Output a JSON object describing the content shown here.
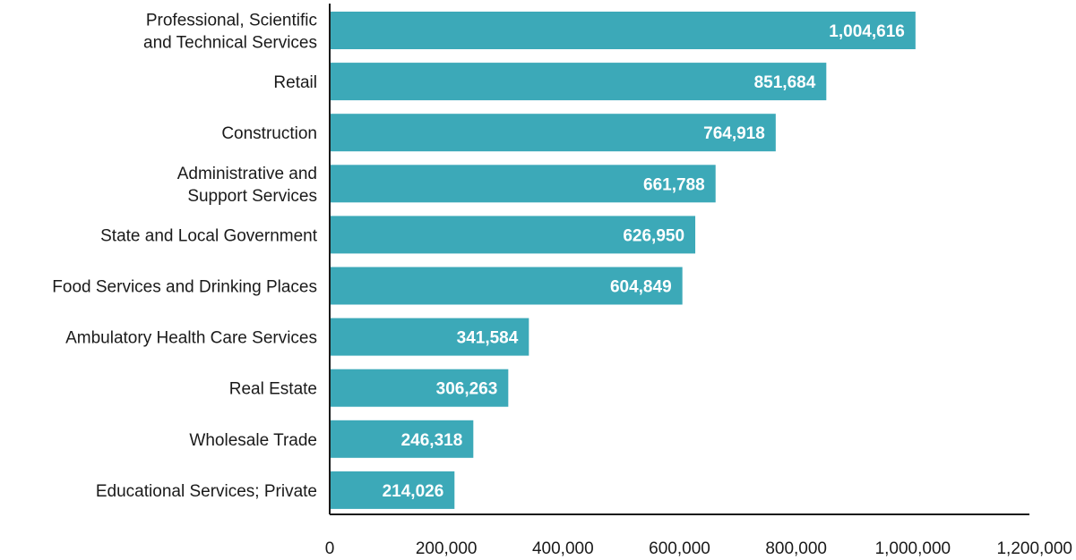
{
  "chart_data": {
    "type": "bar",
    "orientation": "horizontal",
    "title": "",
    "xlabel": "",
    "ylabel": "",
    "categories": [
      [
        "Professional, Scientific",
        "and Technical Services"
      ],
      [
        "Retail"
      ],
      [
        "Construction"
      ],
      [
        "Administrative and",
        "Support Services"
      ],
      [
        "State and Local Government"
      ],
      [
        "Food Services and Drinking Places"
      ],
      [
        "Ambulatory Health Care Services"
      ],
      [
        "Real Estate"
      ],
      [
        "Wholesale Trade"
      ],
      [
        "Educational Services; Private"
      ]
    ],
    "values": [
      1004616,
      851684,
      764918,
      661788,
      626950,
      604849,
      341584,
      306263,
      246318,
      214026
    ],
    "value_labels": [
      "1,004,616",
      "851,684",
      "764,918",
      "661,788",
      "626,950",
      "604,849",
      "341,584",
      "306,263",
      "246,318",
      "214,026"
    ],
    "xlim": [
      0,
      1200000
    ],
    "x_ticks": [
      0,
      200000,
      400000,
      600000,
      800000,
      1000000,
      1200000
    ],
    "x_tick_labels": [
      "0",
      "200,000",
      "400,000",
      "600,000",
      "800,000",
      "1,000,000",
      "1,200,000"
    ],
    "grid": false,
    "legend": "none",
    "colors": {
      "bar": "#3ca9b8",
      "axis": "#1a1a1a"
    }
  }
}
